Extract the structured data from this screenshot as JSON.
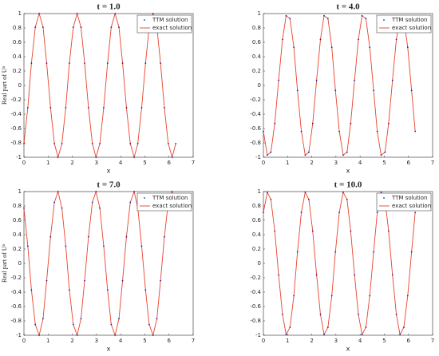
{
  "chart_data": [
    {
      "type": "line",
      "title": "t = 1.0",
      "xlabel": "x",
      "ylabel": "Real part of Uⁿ",
      "x": [
        0,
        0.16,
        0.31,
        0.47,
        0.63,
        0.79,
        0.94,
        1.1,
        1.26,
        1.41,
        1.57,
        1.73,
        1.88,
        2.04,
        2.2,
        2.36,
        2.51,
        2.67,
        2.83,
        2.98,
        3.14,
        3.3,
        3.46,
        3.61,
        3.77,
        3.93,
        4.08,
        4.24,
        4.4,
        4.56,
        4.71,
        4.87,
        5.03,
        5.18,
        5.34,
        5.5,
        5.65,
        5.81,
        5.97,
        6.13,
        6.28
      ],
      "series": [
        {
          "name": "TTM solution",
          "color": "#1a2aa8",
          "style": "markers",
          "values": [
            -0.81,
            -0.31,
            0.31,
            0.81,
            1,
            0.81,
            0.31,
            -0.31,
            -0.81,
            -1,
            -0.81,
            -0.31,
            0.31,
            0.81,
            1,
            0.81,
            0.31,
            -0.31,
            -0.81,
            -1,
            -0.81,
            -0.31,
            0.31,
            0.81,
            1,
            0.81,
            0.31,
            -0.31,
            -0.81,
            -1,
            -0.81,
            -0.31,
            0.31,
            0.81,
            1,
            0.81,
            0.31,
            -0.31,
            -0.81,
            -1,
            -0.81
          ]
        },
        {
          "name": "exact solution",
          "color": "#e8432b",
          "style": "line",
          "values": [
            -0.81,
            -0.31,
            0.31,
            0.81,
            1,
            0.81,
            0.31,
            -0.31,
            -0.81,
            -1,
            -0.81,
            -0.31,
            0.31,
            0.81,
            1,
            0.81,
            0.31,
            -0.31,
            -0.81,
            -1,
            -0.81,
            -0.31,
            0.31,
            0.81,
            1,
            0.81,
            0.31,
            -0.31,
            -0.81,
            -1,
            -0.81,
            -0.31,
            0.31,
            0.81,
            1,
            0.81,
            0.31,
            -0.31,
            -0.81,
            -1,
            -0.81
          ]
        }
      ],
      "xlim": [
        0,
        7
      ],
      "xticks": [
        0,
        1,
        2,
        3,
        4,
        5,
        6,
        7
      ],
      "ylim": [
        -1,
        1
      ],
      "yticks": [
        -1,
        -0.8,
        -0.6,
        -0.4,
        -0.2,
        0,
        0.2,
        0.4,
        0.6,
        0.8,
        1
      ],
      "legend": "upper right"
    },
    {
      "type": "line",
      "title": "t = 4.0",
      "xlabel": "x",
      "x": [
        0,
        0.16,
        0.31,
        0.47,
        0.63,
        0.79,
        0.94,
        1.1,
        1.26,
        1.41,
        1.57,
        1.73,
        1.88,
        2.04,
        2.2,
        2.36,
        2.51,
        2.67,
        2.83,
        2.98,
        3.14,
        3.3,
        3.46,
        3.61,
        3.77,
        3.93,
        4.08,
        4.24,
        4.4,
        4.56,
        4.71,
        4.87,
        5.03,
        5.18,
        5.34,
        5.5,
        5.65,
        5.81,
        5.97,
        6.13,
        6.28
      ],
      "series": [
        {
          "name": "TTM solution",
          "color": "#1a2aa8",
          "style": "markers",
          "values": [
            -0.64,
            -0.97,
            -0.93,
            -0.53,
            0.07,
            0.64,
            0.97,
            0.93,
            0.53,
            -0.07,
            -0.64,
            -0.97,
            -0.93,
            -0.53,
            0.07,
            0.64,
            0.97,
            0.93,
            0.53,
            -0.07,
            -0.64,
            -0.97,
            -0.93,
            -0.53,
            0.07,
            0.64,
            0.97,
            0.93,
            0.53,
            -0.07,
            -0.64,
            -0.97,
            -0.93,
            -0.53,
            0.07,
            0.64,
            0.97,
            0.93,
            0.53,
            -0.07,
            -0.64
          ]
        },
        {
          "name": "exact solution",
          "color": "#e8432b",
          "style": "line",
          "values": [
            -0.64,
            -0.97,
            -0.93,
            -0.53,
            0.07,
            0.64,
            0.97,
            0.93,
            0.53,
            -0.07,
            -0.64,
            -0.97,
            -0.93,
            -0.53,
            0.07,
            0.64,
            0.97,
            0.93,
            0.53,
            -0.07,
            -0.64,
            -0.97,
            -0.93,
            -0.53,
            0.07,
            0.64,
            0.97,
            0.93,
            0.53,
            -0.07,
            -0.64,
            -0.97,
            -0.93,
            -0.53,
            0.07,
            0.64,
            0.97,
            0.93,
            0.53,
            -0.07,
            -0.64
          ]
        }
      ],
      "xlim": [
        0,
        7
      ],
      "xticks": [
        0,
        1,
        2,
        3,
        4,
        5,
        6,
        7
      ],
      "ylim": [
        -1,
        1
      ],
      "yticks": [
        -1,
        -0.8,
        -0.6,
        -0.4,
        -0.2,
        0,
        0.2,
        0.4,
        0.6,
        0.8,
        1
      ],
      "legend": "upper right"
    },
    {
      "type": "line",
      "title": "t = 7.0",
      "xlabel": "x",
      "ylabel": "Real part of Uⁿ",
      "x": [
        0,
        0.16,
        0.31,
        0.47,
        0.63,
        0.79,
        0.94,
        1.1,
        1.26,
        1.41,
        1.57,
        1.73,
        1.88,
        2.04,
        2.2,
        2.36,
        2.51,
        2.67,
        2.83,
        2.98,
        3.14,
        3.3,
        3.46,
        3.61,
        3.77,
        3.93,
        4.08,
        4.24,
        4.4,
        4.56,
        4.71,
        4.87,
        5.03,
        5.18,
        5.34,
        5.5,
        5.65,
        5.81,
        5.97,
        6.13,
        6.28
      ],
      "series": [
        {
          "name": "TTM solution",
          "color": "#1a2aa8",
          "style": "markers",
          "values": [
            0.77,
            0.24,
            -0.37,
            -0.85,
            -1,
            -0.77,
            -0.24,
            0.37,
            0.85,
            1,
            0.77,
            0.24,
            -0.37,
            -0.85,
            -1,
            -0.77,
            -0.24,
            0.37,
            0.85,
            1,
            0.77,
            0.24,
            -0.37,
            -0.85,
            -1,
            -0.77,
            -0.24,
            0.37,
            0.85,
            1,
            0.77,
            0.24,
            -0.37,
            -0.85,
            -1,
            -0.77,
            -0.24,
            0.37,
            0.85,
            1,
            0.77
          ]
        },
        {
          "name": "exact solution",
          "color": "#e8432b",
          "style": "line",
          "values": [
            0.77,
            0.24,
            -0.37,
            -0.85,
            -1,
            -0.77,
            -0.24,
            0.37,
            0.85,
            1,
            0.77,
            0.24,
            -0.37,
            -0.85,
            -1,
            -0.77,
            -0.24,
            0.37,
            0.85,
            1,
            0.77,
            0.24,
            -0.37,
            -0.85,
            -1,
            -0.77,
            -0.24,
            0.37,
            0.85,
            1,
            0.77,
            0.24,
            -0.37,
            -0.85,
            -1,
            -0.77,
            -0.24,
            0.37,
            0.85,
            1,
            0.77
          ]
        }
      ],
      "xlim": [
        0,
        7
      ],
      "xticks": [
        0,
        1,
        2,
        3,
        4,
        5,
        6,
        7
      ],
      "ylim": [
        -1,
        1
      ],
      "yticks": [
        -1,
        -0.8,
        -0.6,
        -0.4,
        -0.2,
        0,
        0.2,
        0.4,
        0.6,
        0.8,
        1
      ],
      "legend": "upper right"
    },
    {
      "type": "line",
      "title": "t = 10.0",
      "xlabel": "x",
      "x": [
        0,
        0.16,
        0.31,
        0.47,
        0.63,
        0.79,
        0.94,
        1.1,
        1.26,
        1.41,
        1.57,
        1.73,
        1.88,
        2.04,
        2.2,
        2.36,
        2.51,
        2.67,
        2.83,
        2.98,
        3.14,
        3.3,
        3.46,
        3.61,
        3.77,
        3.93,
        4.08,
        4.24,
        4.4,
        4.56,
        4.71,
        4.87,
        5.03,
        5.18,
        5.34,
        5.5,
        5.65,
        5.81,
        5.97,
        6.13,
        6.28
      ],
      "series": [
        {
          "name": "TTM solution",
          "color": "#1a2aa8",
          "style": "markers",
          "values": [
            0.71,
            0.99,
            0.89,
            0.45,
            -0.16,
            -0.71,
            -0.99,
            -0.89,
            -0.45,
            0.16,
            0.71,
            0.99,
            0.89,
            0.45,
            -0.16,
            -0.71,
            -0.99,
            -0.89,
            -0.45,
            0.16,
            0.71,
            0.99,
            0.89,
            0.45,
            -0.16,
            -0.71,
            -0.99,
            -0.89,
            -0.45,
            0.16,
            0.71,
            0.99,
            0.89,
            0.45,
            -0.16,
            -0.71,
            -0.99,
            -0.89,
            -0.45,
            0.16,
            0.71
          ]
        },
        {
          "name": "exact solution",
          "color": "#e8432b",
          "style": "line",
          "values": [
            0.71,
            0.99,
            0.89,
            0.45,
            -0.16,
            -0.71,
            -0.99,
            -0.89,
            -0.45,
            0.16,
            0.71,
            0.99,
            0.89,
            0.45,
            -0.16,
            -0.71,
            -0.99,
            -0.89,
            -0.45,
            0.16,
            0.71,
            0.99,
            0.89,
            0.45,
            -0.16,
            -0.71,
            -0.99,
            -0.89,
            -0.45,
            0.16,
            0.71,
            0.99,
            0.89,
            0.45,
            -0.16,
            -0.71,
            -0.99,
            -0.89,
            -0.45,
            0.16,
            0.71
          ]
        }
      ],
      "xlim": [
        0,
        7
      ],
      "xticks": [
        0,
        1,
        2,
        3,
        4,
        5,
        6,
        7
      ],
      "ylim": [
        -1,
        1
      ],
      "yticks": [
        -1,
        -0.8,
        -0.6,
        -0.4,
        -0.2,
        0,
        0.2,
        0.4,
        0.6,
        0.8,
        1
      ],
      "legend": "upper right"
    }
  ]
}
